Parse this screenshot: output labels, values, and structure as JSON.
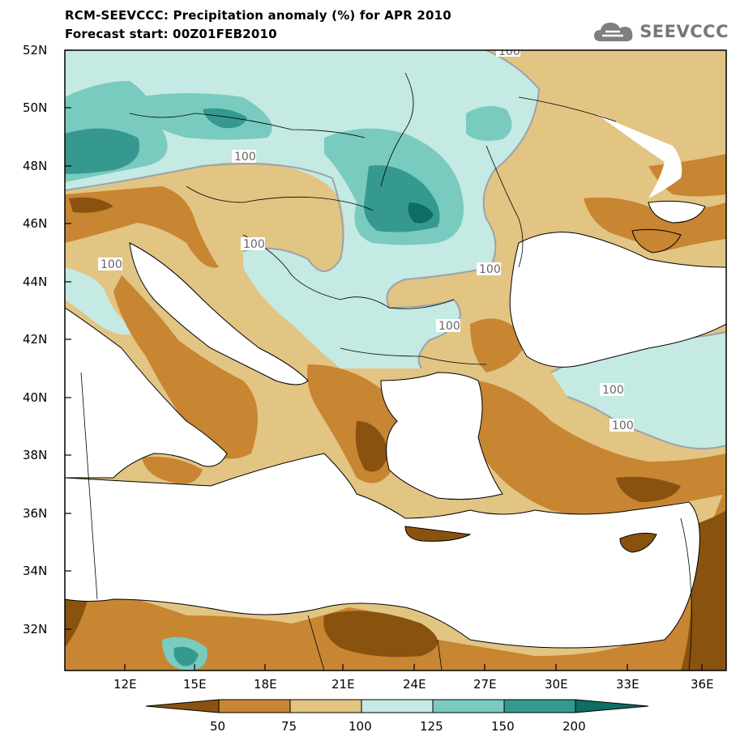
{
  "header": {
    "title_line1": "RCM-SEEVCCC: Precipitation anomaly (%) for APR 2010",
    "title_line2": "Forecast start: 00Z01FEB2010"
  },
  "logo": {
    "text": "SEEVCCC",
    "icon": "cloud-icon"
  },
  "map": {
    "lat_labels": [
      "52N",
      "50N",
      "48N",
      "46N",
      "44N",
      "42N",
      "40N",
      "38N",
      "36N",
      "34N",
      "32N"
    ],
    "lon_labels": [
      "12E",
      "15E",
      "18E",
      "21E",
      "24E",
      "27E",
      "30E",
      "33E",
      "36E"
    ],
    "contour_labels": [
      "100",
      "100",
      "100",
      "100",
      "100",
      "100",
      "100",
      "100"
    ]
  },
  "colorbar": {
    "labels": [
      "50",
      "75",
      "100",
      "125",
      "150",
      "200"
    ],
    "colors": {
      "below_50": "#8a520f",
      "c50_75": "#c88532",
      "c75_100": "#e2c483",
      "c100_125": "#c5e9e3",
      "c125_150": "#79cbbf",
      "c150_200": "#35998f",
      "above_200": "#0f6d63"
    }
  }
}
